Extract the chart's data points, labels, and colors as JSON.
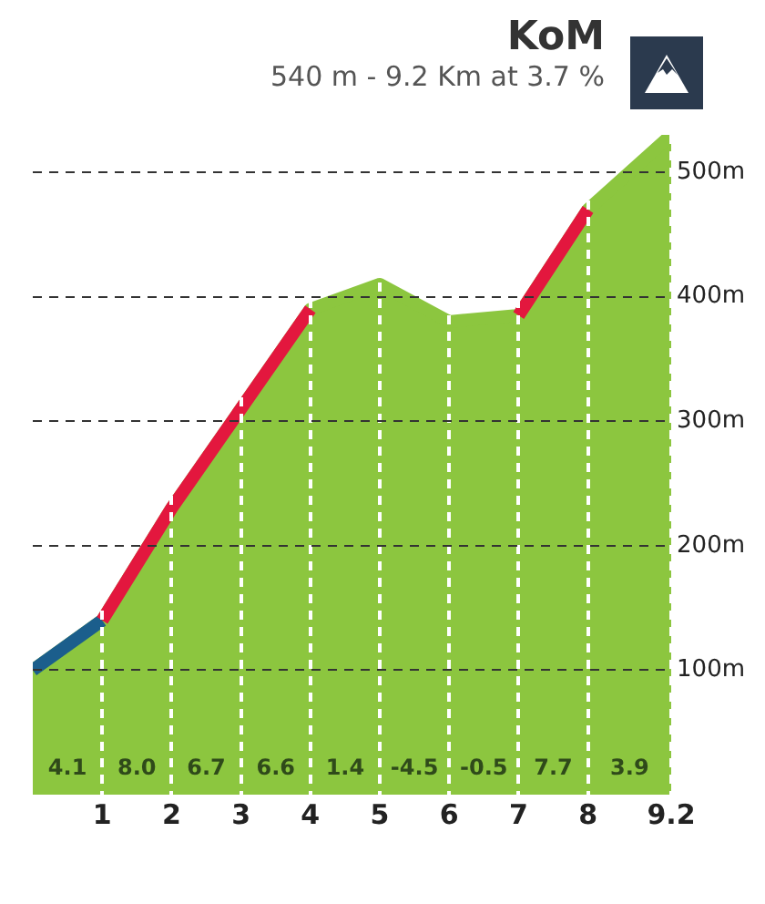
{
  "chart_data": {
    "type": "area",
    "title": "KoM",
    "subtitle": "540 m - 9.2 Km at 3.7 %",
    "x": [
      0,
      1,
      2,
      3,
      4,
      5,
      6,
      7,
      8,
      9.2
    ],
    "series": [
      {
        "color": "#8cc63f",
        "values": [
          100,
          140,
          230,
          310,
          390,
          410,
          380,
          385,
          470,
          530
        ]
      },
      {
        "type": "line",
        "color": "#1b5e8c",
        "values": [
          100,
          140,
          null,
          null,
          null,
          null,
          null,
          null,
          null,
          null
        ]
      },
      {
        "type": "line",
        "color": "#e3173e",
        "values": [
          null,
          140,
          230,
          310,
          390,
          null,
          null,
          385,
          470,
          null
        ]
      }
    ],
    "xlim": [
      0,
      9.2
    ],
    "xticks": [
      1,
      2,
      3,
      4,
      5,
      6,
      7,
      8,
      9.2
    ],
    "ylim": [
      0,
      530
    ],
    "yticks": [
      {
        "value": 100,
        "label": "100m"
      },
      {
        "value": 200,
        "label": "200m"
      },
      {
        "value": 300,
        "label": "300m"
      },
      {
        "value": 400,
        "label": "400m"
      },
      {
        "value": 500,
        "label": "500m"
      }
    ],
    "grid": true,
    "annotations": [
      "4.1",
      "8.0",
      "6.7",
      "6.6",
      "1.4",
      "-4.5",
      "-0.5",
      "7.7",
      "3.9"
    ]
  }
}
